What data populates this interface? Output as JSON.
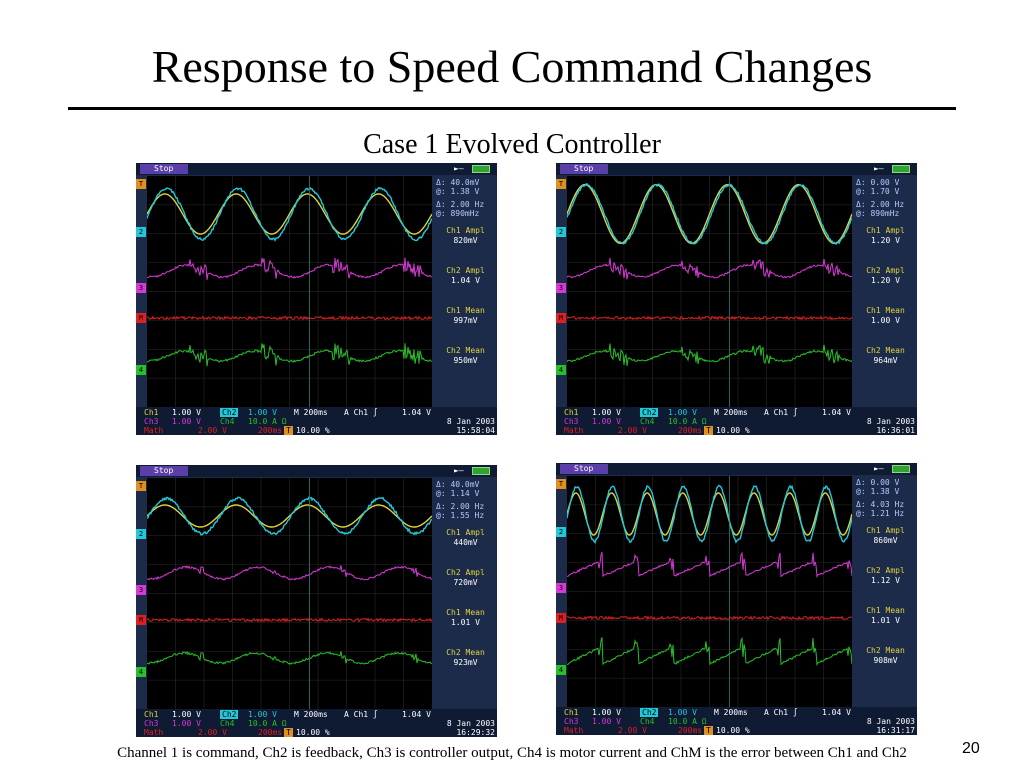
{
  "slide": {
    "title": "Response to Speed Command Changes",
    "subtitle": "Case 1 Evolved Controller",
    "caption": "Channel 1 is command, Ch2 is feedback, Ch3 is controller output, Ch4 is motor current and ChM is the error between Ch1 and Ch2",
    "page_number": "20"
  },
  "colors": {
    "ch1": "#e0d23c",
    "ch2": "#22c8d8",
    "ch3": "#d838d8",
    "ch4": "#28c028",
    "math": "#e02020",
    "background": "#1c2b4a"
  },
  "scopes": [
    {
      "status": "Stop",
      "icons": [
        "trigger-arrow-icon",
        "battery-icon"
      ],
      "markers": [
        "T",
        "2",
        "3",
        "M",
        "4"
      ],
      "delta_rows": [
        "Δ:  40.0mV",
        "@:   1.38 V",
        "Δ:  2.00 Hz",
        "@:  890mHz"
      ],
      "measurements": [
        {
          "label": "Ch1 Ampl",
          "value": "820mV"
        },
        {
          "label": "Ch2 Ampl",
          "value": "1.04 V"
        },
        {
          "label": "Ch1 Mean",
          "value": "997mV"
        },
        {
          "label": "Ch2 Mean",
          "value": "950mV"
        }
      ],
      "footer": {
        "ch1": "Ch1",
        "ch1_scale": "1.00 V",
        "ch2": "Ch2",
        "ch2_scale": "1.00 V",
        "timebase": "M 200ms",
        "trig_src": "A  Ch1 ∫",
        "trig_level": "1.04 V",
        "ch3": "Ch3",
        "ch3_scale": "1.00 V",
        "ch4": "Ch4",
        "ch4_scale": "10.0 A Ω",
        "math": "Math",
        "math_scale": "2.00 V",
        "math_time": "200ms",
        "t_icon": "T",
        "trig_pos": "10.00 %",
        "date": "8 Jan  2003",
        "time": "15:58:04"
      },
      "waves": {
        "ch1_amp": 0.82,
        "ch2_amp": 1.04,
        "freq_hz": 2.0,
        "pattern": "burst"
      }
    },
    {
      "status": "Stop",
      "icons": [
        "trigger-arrow-icon",
        "battery-icon"
      ],
      "markers": [
        "T",
        "2",
        "3",
        "M",
        "4"
      ],
      "delta_rows": [
        "Δ:   0.00 V",
        "@:   1.70 V",
        "Δ:  2.00 Hz",
        "@:  890mHz"
      ],
      "measurements": [
        {
          "label": "Ch1 Ampl",
          "value": "1.20 V"
        },
        {
          "label": "Ch2 Ampl",
          "value": "1.20 V"
        },
        {
          "label": "Ch1 Mean",
          "value": "1.00 V"
        },
        {
          "label": "Ch2 Mean",
          "value": "964mV"
        }
      ],
      "footer": {
        "ch1": "Ch1",
        "ch1_scale": "1.00 V",
        "ch2": "Ch2",
        "ch2_scale": "1.00 V",
        "timebase": "M 200ms",
        "trig_src": "A  Ch1 ∫",
        "trig_level": "1.04 V",
        "ch3": "Ch3",
        "ch3_scale": "1.00 V",
        "ch4": "Ch4",
        "ch4_scale": "10.0 A Ω",
        "math": "Math",
        "math_scale": "2.00 V",
        "math_time": "200ms",
        "t_icon": "T",
        "trig_pos": "10.00 %",
        "date": "8 Jan  2003",
        "time": "16:36:01"
      },
      "waves": {
        "ch1_amp": 1.2,
        "ch2_amp": 1.2,
        "freq_hz": 2.0,
        "pattern": "burst"
      }
    },
    {
      "status": "Stop",
      "icons": [
        "trigger-arrow-icon",
        "battery-icon"
      ],
      "markers": [
        "T",
        "2",
        "3",
        "M",
        "4"
      ],
      "delta_rows": [
        "Δ:  40.0mV",
        "@:   1.14 V",
        "Δ:  2.00 Hz",
        "@:   1.55 Hz"
      ],
      "measurements": [
        {
          "label": "Ch1 Ampl",
          "value": "440mV"
        },
        {
          "label": "Ch2 Ampl",
          "value": "720mV"
        },
        {
          "label": "Ch1 Mean",
          "value": "1.01 V"
        },
        {
          "label": "Ch2 Mean",
          "value": "923mV"
        }
      ],
      "footer": {
        "ch1": "Ch1",
        "ch1_scale": "1.00 V",
        "ch2": "Ch2",
        "ch2_scale": "1.00 V",
        "timebase": "M 200ms",
        "trig_src": "A  Ch1 ∫",
        "trig_level": "1.04 V",
        "ch3": "Ch3",
        "ch3_scale": "1.00 V",
        "ch4": "Ch4",
        "ch4_scale": "10.0 A Ω",
        "math": "Math",
        "math_scale": "2.00 V",
        "math_time": "200ms",
        "t_icon": "T",
        "trig_pos": "10.00 %",
        "date": "8 Jan  2003",
        "time": "16:29:32"
      },
      "waves": {
        "ch1_amp": 0.44,
        "ch2_amp": 0.72,
        "freq_hz": 2.0,
        "pattern": "spike"
      }
    },
    {
      "status": "Stop",
      "icons": [
        "trigger-arrow-icon",
        "battery-icon"
      ],
      "markers": [
        "T",
        "2",
        "3",
        "M",
        "4"
      ],
      "delta_rows": [
        "Δ:   0.00 V",
        "@:   1.38 V",
        "Δ:  4.03 Hz",
        "@:   1.21 Hz"
      ],
      "measurements": [
        {
          "label": "Ch1 Ampl",
          "value": "860mV"
        },
        {
          "label": "Ch2 Ampl",
          "value": "1.12 V"
        },
        {
          "label": "Ch1 Mean",
          "value": "1.01 V"
        },
        {
          "label": "Ch2 Mean",
          "value": "908mV"
        }
      ],
      "footer": {
        "ch1": "Ch1",
        "ch1_scale": "1.00 V",
        "ch2": "Ch2",
        "ch2_scale": "1.00 V",
        "timebase": "M 200ms",
        "trig_src": "A  Ch1 ∫",
        "trig_level": "1.04 V",
        "ch3": "Ch3",
        "ch3_scale": "1.00 V",
        "ch4": "Ch4",
        "ch4_scale": "10.0 A Ω",
        "math": "Math",
        "math_scale": "2.00 V",
        "math_time": "200ms",
        "t_icon": "T",
        "trig_pos": "10.00 %",
        "date": "8 Jan  2003",
        "time": "16:31:17"
      },
      "waves": {
        "ch1_amp": 0.86,
        "ch2_amp": 1.12,
        "freq_hz": 4.0,
        "pattern": "saw"
      }
    }
  ]
}
